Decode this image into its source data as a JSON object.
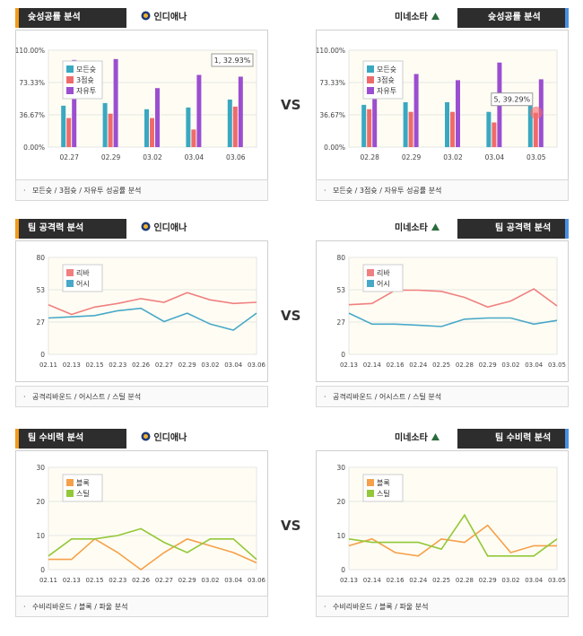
{
  "vs_label": "VS",
  "colors": {
    "all": "#3aa8c1",
    "three": "#ef6b6b",
    "free": "#9b4fd0",
    "reb": "#f08080",
    "ast": "#48a8c8",
    "blk": "#f5a04a",
    "stl": "#93c83a",
    "left_bar": "#f29b1d",
    "right_bar": "#4a8fe0"
  },
  "teams": {
    "left": "인디애나",
    "right": "미네소타"
  },
  "sections": [
    {
      "id": "shoot",
      "title": "슛성공률 분석",
      "footer": "모든슛 / 3점슛 / 자유투 성공률 분석"
    },
    {
      "id": "attack",
      "title": "팀 공격력 분석",
      "footer": "공격리바운드 / 어시스트 / 스틸 분석"
    },
    {
      "id": "defense",
      "title": "팀 수비력 분석",
      "footer": "수비리바운드 / 블록 / 파울 분석"
    }
  ],
  "chart_data": [
    {
      "id": "left-shoot",
      "type": "bar",
      "categories": [
        "02.27",
        "02.29",
        "03.02",
        "03.04",
        "03.06"
      ],
      "y_ticks": [
        "110.00%",
        "73.33%",
        "36.67%",
        "0.00%"
      ],
      "ylim": [
        0,
        110
      ],
      "series": [
        {
          "name": "모든슛",
          "values": [
            47,
            50,
            43,
            45,
            54
          ]
        },
        {
          "name": "3점슛",
          "values": [
            33,
            38,
            33,
            20,
            46
          ]
        },
        {
          "name": "자유투",
          "values": [
            99,
            100,
            67,
            82,
            80
          ]
        }
      ],
      "tooltip": "1, 32.93%"
    },
    {
      "id": "right-shoot",
      "type": "bar",
      "categories": [
        "02.28",
        "02.29",
        "03.02",
        "03.04",
        "03.05"
      ],
      "y_ticks": [
        "110.00%",
        "73.33%",
        "36.67%",
        "0.00%"
      ],
      "ylim": [
        0,
        110
      ],
      "series": [
        {
          "name": "모든슛",
          "values": [
            48,
            51,
            51,
            40,
            48
          ]
        },
        {
          "name": "3점슛",
          "values": [
            43,
            40,
            40,
            28,
            39
          ]
        },
        {
          "name": "자유투",
          "values": [
            88,
            83,
            76,
            96,
            77
          ]
        }
      ],
      "tooltip": "5, 39.29%"
    },
    {
      "id": "left-attack",
      "type": "line",
      "categories": [
        "02.11",
        "02.13",
        "02.15",
        "02.23",
        "02.26",
        "02.27",
        "02.29",
        "03.02",
        "03.04",
        "03.06"
      ],
      "y_ticks": [
        "80",
        "53",
        "27",
        "0"
      ],
      "ylim": [
        0,
        80
      ],
      "series": [
        {
          "name": "리바",
          "values": [
            41,
            33,
            39,
            42,
            46,
            43,
            51,
            45,
            42,
            43
          ]
        },
        {
          "name": "어시",
          "values": [
            30,
            31,
            32,
            36,
            38,
            27,
            34,
            25,
            20,
            34
          ]
        }
      ]
    },
    {
      "id": "right-attack",
      "type": "line",
      "categories": [
        "02.13",
        "02.14",
        "02.16",
        "02.24",
        "02.25",
        "02.28",
        "02.29",
        "03.02",
        "03.04",
        "03.05"
      ],
      "y_ticks": [
        "80",
        "53",
        "27",
        "0"
      ],
      "ylim": [
        0,
        80
      ],
      "series": [
        {
          "name": "리바",
          "values": [
            41,
            42,
            53,
            53,
            52,
            47,
            39,
            44,
            54,
            40
          ]
        },
        {
          "name": "어시",
          "values": [
            34,
            25,
            25,
            24,
            23,
            29,
            30,
            30,
            25,
            28
          ]
        }
      ]
    },
    {
      "id": "left-defense",
      "type": "line",
      "categories": [
        "02.11",
        "02.13",
        "02.15",
        "02.23",
        "02.26",
        "02.27",
        "02.29",
        "03.02",
        "03.04",
        "03.06"
      ],
      "y_ticks": [
        "30",
        "20",
        "10",
        "0"
      ],
      "ylim": [
        0,
        30
      ],
      "series": [
        {
          "name": "블록",
          "values": [
            3,
            3,
            9,
            5,
            0,
            5,
            9,
            7,
            5,
            2
          ]
        },
        {
          "name": "스틸",
          "values": [
            4,
            9,
            9,
            10,
            12,
            8,
            5,
            9,
            9,
            3
          ]
        }
      ]
    },
    {
      "id": "right-defense",
      "type": "line",
      "categories": [
        "02.13",
        "02.14",
        "02.16",
        "02.24",
        "02.25",
        "02.28",
        "02.29",
        "03.02",
        "03.04",
        "03.05"
      ],
      "y_ticks": [
        "30",
        "20",
        "10",
        "0"
      ],
      "ylim": [
        0,
        30
      ],
      "series": [
        {
          "name": "블록",
          "values": [
            7,
            9,
            5,
            4,
            9,
            8,
            13,
            5,
            7,
            7
          ]
        },
        {
          "name": "스틸",
          "values": [
            9,
            8,
            8,
            8,
            6,
            16,
            4,
            4,
            4,
            9
          ]
        }
      ]
    }
  ]
}
